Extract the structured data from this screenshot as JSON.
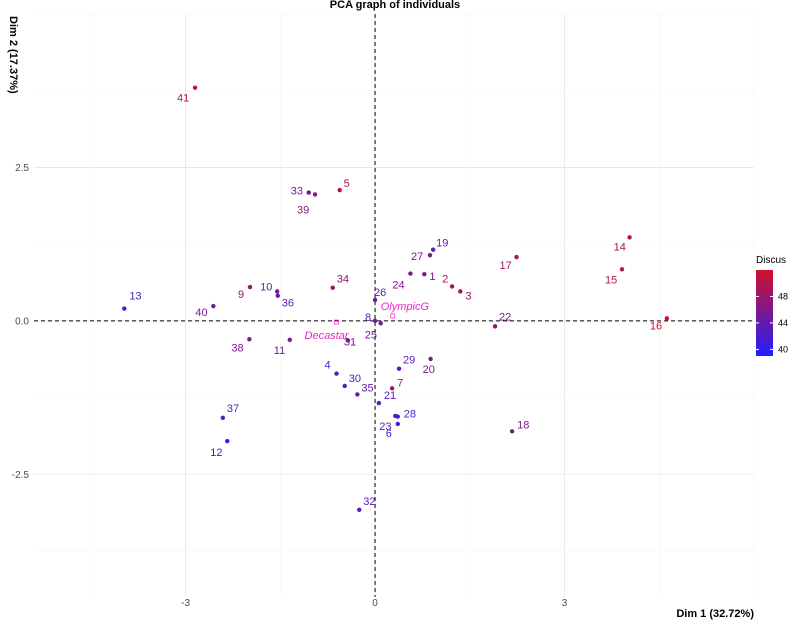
{
  "chart_data": {
    "type": "scatter",
    "title": "PCA graph of individuals",
    "xlabel": "Dim 1 (32.72%)",
    "ylabel": "Dim 2 (17.37%)",
    "xlim": [
      -5.4,
      6.0
    ],
    "ylim": [
      -4.5,
      5.0
    ],
    "xticks": [
      -3,
      0,
      3
    ],
    "yticks": [
      -2.5,
      0.0,
      2.5
    ],
    "xtick_labels": [
      "-3",
      "0",
      "3"
    ],
    "ytick_labels": [
      "-2.5",
      "0.0",
      "2.5"
    ],
    "grid": true,
    "reference_lines": {
      "x": 0,
      "y": 0
    },
    "legend": {
      "title": "Discus",
      "position": "right",
      "ticks": [
        40,
        44,
        48
      ],
      "tick_labels": [
        "40",
        "44",
        "48"
      ],
      "range": [
        39,
        52
      ],
      "low_color": "#2020ff",
      "high_color": "#d0102a"
    },
    "points": [
      {
        "label": "1",
        "x": 0.78,
        "y": 0.76,
        "discus": 46
      },
      {
        "label": "2",
        "x": 1.22,
        "y": 0.56,
        "discus": 49
      },
      {
        "label": "3",
        "x": 1.35,
        "y": 0.48,
        "discus": 48
      },
      {
        "label": "4",
        "x": -0.61,
        "y": -0.86,
        "discus": 42
      },
      {
        "label": "5",
        "x": -0.56,
        "y": 2.13,
        "discus": 50
      },
      {
        "label": "6",
        "x": 0.36,
        "y": -1.68,
        "discus": 42
      },
      {
        "label": "7",
        "x": 0.27,
        "y": -1.1,
        "discus": 49
      },
      {
        "label": "8",
        "x": 0.0,
        "y": 0.0,
        "discus": 44
      },
      {
        "label": "9",
        "x": -1.98,
        "y": 0.55,
        "discus": 48
      },
      {
        "label": "10",
        "x": -1.55,
        "y": 0.48,
        "discus": 45
      },
      {
        "label": "11",
        "x": -1.35,
        "y": -0.31,
        "discus": 45
      },
      {
        "label": "12",
        "x": -2.34,
        "y": -1.96,
        "discus": 39
      },
      {
        "label": "13",
        "x": -3.97,
        "y": 0.2,
        "discus": 42
      },
      {
        "label": "14",
        "x": 4.03,
        "y": 1.36,
        "discus": 49
      },
      {
        "label": "15",
        "x": 3.91,
        "y": 0.84,
        "discus": 50
      },
      {
        "label": "16",
        "x": 4.62,
        "y": 0.04,
        "discus": 52
      },
      {
        "label": "17",
        "x": 2.24,
        "y": 1.04,
        "discus": 49
      },
      {
        "label": "18",
        "x": 2.17,
        "y": -1.8,
        "discus": 46
      },
      {
        "label": "19",
        "x": 0.92,
        "y": 1.16,
        "discus": 44
      },
      {
        "label": "20",
        "x": 0.88,
        "y": -0.62,
        "discus": 46
      },
      {
        "label": "21",
        "x": 0.06,
        "y": -1.34,
        "discus": 43
      },
      {
        "label": "22",
        "x": 1.9,
        "y": -0.09,
        "discus": 47
      },
      {
        "label": "23",
        "x": 0.32,
        "y": -1.55,
        "discus": 43
      },
      {
        "label": "24",
        "x": 0.56,
        "y": 0.77,
        "discus": 46
      },
      {
        "label": "25",
        "x": 0.09,
        "y": -0.04,
        "discus": 45
      },
      {
        "label": "26",
        "x": 0.0,
        "y": 0.34,
        "discus": 44
      },
      {
        "label": "27",
        "x": 0.87,
        "y": 1.07,
        "discus": 46
      },
      {
        "label": "28",
        "x": 0.36,
        "y": -1.56,
        "discus": 42
      },
      {
        "label": "29",
        "x": 0.38,
        "y": -0.78,
        "discus": 43
      },
      {
        "label": "30",
        "x": -0.48,
        "y": -1.06,
        "discus": 43
      },
      {
        "label": "31",
        "x": -0.43,
        "y": -0.32,
        "discus": 46
      },
      {
        "label": "32",
        "x": -0.25,
        "y": -3.08,
        "discus": 43
      },
      {
        "label": "33",
        "x": -1.05,
        "y": 2.09,
        "discus": 45
      },
      {
        "label": "34",
        "x": -0.67,
        "y": 0.54,
        "discus": 47
      },
      {
        "label": "35",
        "x": -0.28,
        "y": -1.2,
        "discus": 44
      },
      {
        "label": "36",
        "x": -1.54,
        "y": 0.41,
        "discus": 44
      },
      {
        "label": "37",
        "x": -2.41,
        "y": -1.58,
        "discus": 42
      },
      {
        "label": "38",
        "x": -1.99,
        "y": -0.3,
        "discus": 46
      },
      {
        "label": "39",
        "x": -0.95,
        "y": 2.06,
        "discus": 47
      },
      {
        "label": "40",
        "x": -2.56,
        "y": 0.24,
        "discus": 45
      },
      {
        "label": "41",
        "x": -2.85,
        "y": 3.8,
        "discus": 51
      }
    ],
    "supplementary": [
      {
        "label": "Decastar",
        "x": -0.61,
        "y": -0.02
      },
      {
        "label": "OlympicG",
        "x": 0.28,
        "y": 0.08
      }
    ]
  }
}
